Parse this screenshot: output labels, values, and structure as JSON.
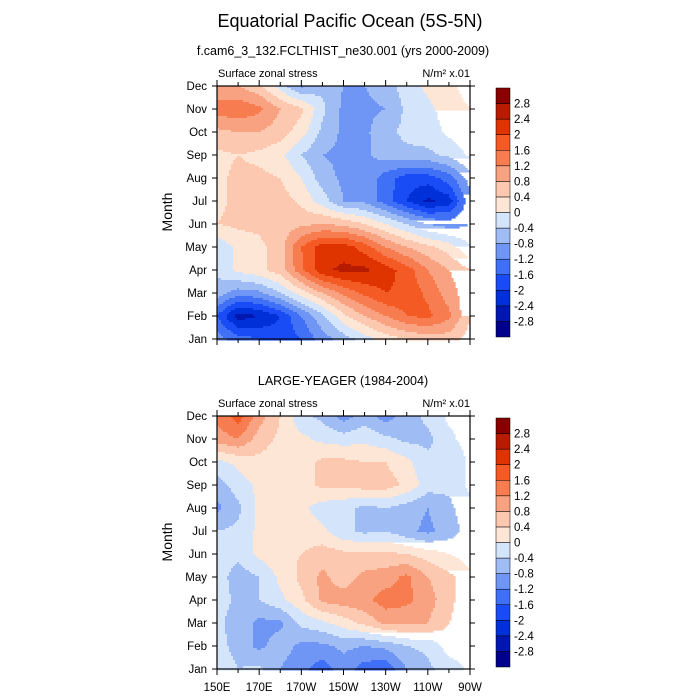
{
  "title": "Equatorial Pacific Ocean (5S-5N)",
  "chart_data": [
    {
      "type": "heatmap",
      "subtitle": "f.cam6_3_132.FCLTHIST_ne30.001 (yrs 2000-2009)",
      "left_label": "Surface zonal stress",
      "right_label": "N/m² x.01",
      "ylabel": "Month",
      "x": [
        150,
        160,
        170,
        180,
        190,
        200,
        210,
        220,
        230,
        240,
        250,
        260,
        270
      ],
      "x_tick_labels": [
        "150E",
        "170E",
        "170W",
        "150W",
        "130W",
        "110W",
        "90W"
      ],
      "show_x_tick_labels": false,
      "y_tick_labels": [
        "Jan",
        "Feb",
        "Mar",
        "Apr",
        "May",
        "Jun",
        "Jul",
        "Aug",
        "Sep",
        "Oct",
        "Nov",
        "Dec"
      ],
      "values": [
        [
          -1.0,
          -1.4,
          -1.6,
          -1.8,
          -1.6,
          -1.0,
          -0.6,
          -0.2,
          0.2,
          0.4,
          0.6,
          0.6,
          0.2
        ],
        [
          -1.6,
          -2.6,
          -2.4,
          -2.0,
          -1.2,
          -0.5,
          0.3,
          0.8,
          1.2,
          1.6,
          1.7,
          1.3,
          0.4
        ],
        [
          -0.6,
          -1.0,
          -0.9,
          -0.4,
          0.2,
          0.8,
          1.3,
          1.7,
          2.0,
          1.9,
          1.5,
          1.0,
          0.5
        ],
        [
          -0.3,
          0.1,
          0.3,
          0.6,
          1.5,
          2.3,
          2.5,
          2.5,
          2.2,
          1.8,
          1.2,
          0.8,
          0.4
        ],
        [
          -0.3,
          0.1,
          0.3,
          0.6,
          1.6,
          2.2,
          2.2,
          1.8,
          1.2,
          0.8,
          0.5,
          0.2,
          -0.4
        ],
        [
          0.4,
          0.5,
          0.5,
          0.6,
          0.7,
          0.8,
          0.7,
          0.4,
          0.0,
          -0.4,
          -0.8,
          -1.0,
          -0.8
        ],
        [
          0.3,
          0.5,
          0.5,
          0.6,
          0.3,
          -0.2,
          -0.8,
          -0.9,
          -1.4,
          -2.0,
          -2.5,
          -2.2,
          -0.9
        ],
        [
          0.3,
          0.5,
          0.5,
          0.4,
          0.0,
          -0.6,
          -0.9,
          -0.9,
          -1.4,
          -1.8,
          -1.8,
          -1.4,
          -0.6
        ],
        [
          0.3,
          0.4,
          0.3,
          0.1,
          -0.4,
          -0.8,
          -0.9,
          -0.9,
          -0.6,
          -0.5,
          -0.5,
          -0.3,
          0.1
        ],
        [
          0.7,
          0.8,
          0.8,
          0.6,
          0.2,
          -0.5,
          -0.9,
          -0.9,
          -0.5,
          -0.3,
          -0.2,
          0.1,
          0.3
        ],
        [
          1.4,
          1.5,
          1.3,
          0.8,
          0.5,
          -0.3,
          -0.9,
          -0.9,
          -0.8,
          -0.3,
          -0.1,
          0.2,
          0.4
        ],
        [
          0.9,
          0.8,
          0.5,
          -0.2,
          -0.9,
          -0.5,
          -0.8,
          -0.8,
          -0.6,
          -0.2,
          0.1,
          0.3,
          0.6
        ]
      ]
    },
    {
      "type": "heatmap",
      "subtitle": "LARGE-YEAGER (1984-2004)",
      "left_label": "Surface zonal stress",
      "right_label": "N/m² x.01",
      "ylabel": "Month",
      "x": [
        150,
        160,
        170,
        180,
        190,
        200,
        210,
        220,
        230,
        240,
        250,
        260,
        270
      ],
      "x_tick_labels": [
        "150E",
        "170E",
        "170W",
        "150W",
        "130W",
        "110W",
        "90W"
      ],
      "show_x_tick_labels": true,
      "y_tick_labels": [
        "Jan",
        "Feb",
        "Mar",
        "Apr",
        "May",
        "Jun",
        "Jul",
        "Aug",
        "Sep",
        "Oct",
        "Nov",
        "Dec"
      ],
      "values": [
        [
          0.0,
          -0.4,
          -0.3,
          -0.8,
          -1.1,
          -1.4,
          -1.0,
          -1.4,
          -1.5,
          -0.8,
          -0.5,
          -0.2,
          0.1
        ],
        [
          -0.2,
          -0.6,
          -0.9,
          -0.6,
          -0.9,
          -0.9,
          -0.7,
          -0.8,
          -0.7,
          -0.4,
          -0.3,
          0.2,
          0.1
        ],
        [
          -0.3,
          -0.6,
          -0.9,
          -0.9,
          -0.3,
          -0.1,
          0.2,
          0.5,
          0.9,
          0.9,
          0.8,
          0.4,
          0.1
        ],
        [
          -0.2,
          -0.5,
          -0.4,
          -0.1,
          0.3,
          0.9,
          1.0,
          1.1,
          1.4,
          1.3,
          1.0,
          0.5,
          0.1
        ],
        [
          -0.2,
          -0.6,
          -0.4,
          0.1,
          0.5,
          0.9,
          0.6,
          0.9,
          1.0,
          1.3,
          0.8,
          0.5,
          0.1
        ],
        [
          -0.2,
          -0.3,
          0.1,
          0.3,
          0.4,
          0.6,
          0.5,
          0.5,
          0.5,
          0.4,
          0.2,
          0.0,
          -0.2
        ],
        [
          -0.4,
          -0.3,
          0.1,
          0.2,
          0.2,
          0.1,
          -0.3,
          -0.5,
          -0.4,
          -0.7,
          -0.9,
          -0.6,
          -0.2
        ],
        [
          -0.9,
          -0.5,
          0.1,
          0.2,
          0.1,
          -0.2,
          -0.3,
          -0.5,
          -0.4,
          -0.6,
          -0.8,
          -0.5,
          -0.1
        ],
        [
          -0.6,
          -0.2,
          0.1,
          0.2,
          0.2,
          0.5,
          0.5,
          0.6,
          0.6,
          0.3,
          -0.2,
          -0.3,
          0.1
        ],
        [
          -0.1,
          0.1,
          0.3,
          0.2,
          0.2,
          0.5,
          0.5,
          0.4,
          0.4,
          0.1,
          -0.3,
          -0.4,
          0.1
        ],
        [
          1.0,
          1.2,
          0.6,
          0.3,
          0.1,
          -0.1,
          -0.2,
          -0.1,
          -0.3,
          -0.5,
          -0.5,
          -0.1,
          0.2
        ],
        [
          1.3,
          1.8,
          1.0,
          0.4,
          -0.3,
          -0.5,
          -1.0,
          -0.6,
          -1.0,
          -0.6,
          -0.3,
          0.1,
          0.1
        ]
      ]
    }
  ],
  "colorbar": {
    "levels": [
      "-2.8",
      "-2.4",
      "-2",
      "-1.6",
      "-1.2",
      "-0.8",
      "-0.4",
      "0",
      "0.4",
      "0.8",
      "1.2",
      "1.6",
      "2",
      "2.4",
      "2.8"
    ],
    "colors": [
      "#00008c",
      "#0018b0",
      "#0030d8",
      "#1a4cf5",
      "#4070f5",
      "#7096f5",
      "#a0bcf5",
      "#d4e4fa",
      "#fde6d6",
      "#fcc8b0",
      "#f9a282",
      "#f77c50",
      "#f45a24",
      "#e03400",
      "#b81c00",
      "#880000"
    ]
  }
}
